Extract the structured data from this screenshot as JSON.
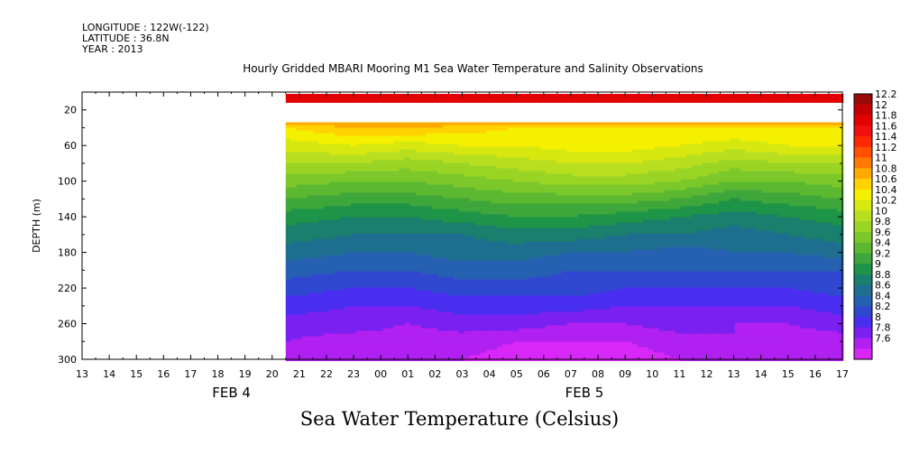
{
  "meta": {
    "longitude": "LONGITUDE : 122W(-122)",
    "latitude": "LATITUDE : 36.8N",
    "year": "YEAR : 2013"
  },
  "title": "Hourly Gridded MBARI Mooring M1 Sea Water Temperature and Salinity Observations",
  "bottom_title": "Sea Water Temperature (Celsius)",
  "chart_data": {
    "type": "heatmap",
    "title": "Hourly Gridded MBARI Mooring M1 Sea Water Temperature and Salinity Observations",
    "xlabel": "",
    "ylabel": "DEPTH (m)",
    "x_tick_labels": [
      "13",
      "14",
      "15",
      "16",
      "17",
      "18",
      "19",
      "20",
      "21",
      "22",
      "23",
      "00",
      "01",
      "02",
      "03",
      "04",
      "05",
      "06",
      "07",
      "08",
      "09",
      "10",
      "11",
      "12",
      "13",
      "14",
      "15",
      "16",
      "17"
    ],
    "date_labels": [
      {
        "label": "FEB 4",
        "at_hour": 18
      },
      {
        "label": "FEB 5",
        "at_hour": 7
      }
    ],
    "y_ticks": [
      20,
      60,
      100,
      140,
      180,
      220,
      260,
      300
    ],
    "ylim": [
      300,
      0
    ],
    "data_start_hour_index": 7.5,
    "depths": [
      15,
      40,
      60,
      80,
      100,
      120,
      140,
      160,
      180,
      200,
      220,
      240,
      260,
      280,
      300
    ],
    "hours_index": [
      7.5,
      10,
      12,
      14,
      16,
      18,
      20,
      22,
      24,
      26,
      28
    ],
    "values": [
      [
        11.8,
        11.8,
        11.8,
        11.8,
        11.9,
        11.9,
        11.9,
        11.8,
        11.8,
        11.8,
        11.8
      ],
      [
        10.6,
        10.8,
        10.8,
        10.7,
        10.6,
        10.6,
        10.6,
        10.6,
        10.6,
        10.6,
        10.6
      ],
      [
        10.3,
        10.4,
        10.3,
        10.4,
        10.4,
        10.5,
        10.5,
        10.4,
        10.3,
        10.4,
        10.4
      ],
      [
        10.0,
        10.0,
        9.9,
        10.0,
        10.1,
        10.2,
        10.2,
        10.1,
        9.9,
        10.0,
        10.0
      ],
      [
        9.7,
        9.6,
        9.6,
        9.7,
        9.8,
        9.9,
        9.9,
        9.8,
        9.6,
        9.6,
        9.7
      ],
      [
        9.4,
        9.3,
        9.3,
        9.4,
        9.5,
        9.5,
        9.5,
        9.4,
        9.2,
        9.3,
        9.4
      ],
      [
        9.1,
        9.0,
        9.0,
        9.1,
        9.2,
        9.2,
        9.1,
        9.0,
        8.9,
        9.0,
        9.1
      ],
      [
        8.9,
        8.8,
        8.8,
        8.8,
        8.9,
        8.9,
        8.8,
        8.8,
        8.7,
        8.8,
        8.9
      ],
      [
        8.7,
        8.6,
        8.6,
        8.7,
        8.7,
        8.6,
        8.6,
        8.5,
        8.6,
        8.6,
        8.7
      ],
      [
        8.5,
        8.4,
        8.4,
        8.5,
        8.5,
        8.4,
        8.4,
        8.4,
        8.4,
        8.4,
        8.4
      ],
      [
        8.3,
        8.2,
        8.2,
        8.3,
        8.3,
        8.3,
        8.2,
        8.2,
        8.2,
        8.2,
        8.3
      ],
      [
        8.1,
        8.0,
        8.0,
        8.1,
        8.1,
        8.1,
        8.0,
        8.0,
        8.0,
        8.0,
        8.1
      ],
      [
        7.9,
        7.9,
        7.8,
        7.9,
        7.9,
        7.8,
        7.8,
        7.9,
        7.8,
        7.8,
        7.9
      ],
      [
        7.8,
        7.7,
        7.7,
        7.7,
        7.6,
        7.6,
        7.6,
        7.7,
        7.8,
        7.7,
        7.7
      ],
      [
        7.7,
        7.6,
        7.6,
        7.6,
        7.5,
        7.5,
        7.5,
        7.6,
        7.6,
        7.6,
        7.6
      ]
    ],
    "colorbar": {
      "labels": [
        "12.2",
        "12",
        "11.8",
        "11.6",
        "11.4",
        "11.2",
        "11",
        "10.8",
        "10.6",
        "10.4",
        "10.2",
        "10",
        "9.8",
        "9.6",
        "9.4",
        "9.2",
        "9",
        "8.8",
        "8.6",
        "8.4",
        "8.2",
        "8",
        "7.8",
        "7.6"
      ],
      "colors": [
        "#9b0a0a",
        "#c40000",
        "#e40000",
        "#f01010",
        "#ff2800",
        "#ff5000",
        "#ff7800",
        "#ffaa00",
        "#ffd200",
        "#f5f000",
        "#d6e810",
        "#b8de20",
        "#9ad424",
        "#7cc82a",
        "#5cb830",
        "#3ea63a",
        "#1e9448",
        "#1a7f6c",
        "#1e6f8f",
        "#2660b0",
        "#3048d0",
        "#4a2ef0",
        "#7a20f0",
        "#b020f0",
        "#d828f8"
      ]
    }
  }
}
